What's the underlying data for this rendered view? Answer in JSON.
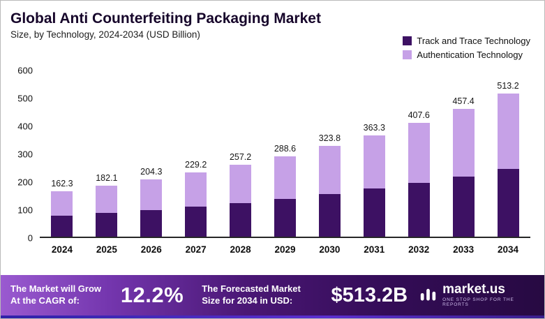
{
  "header": {
    "title": "Global Anti Counterfeiting Packaging Market",
    "subtitle": "Size, by Technology, 2024-2034 (USD Billion)"
  },
  "legend": {
    "items": [
      {
        "label": "Track and Trace Technology",
        "color": "#3d1163"
      },
      {
        "label": "Authentication Technology",
        "color": "#c6a1e7"
      }
    ]
  },
  "chart_data": {
    "type": "bar",
    "stacked": true,
    "title": "Global Anti Counterfeiting Packaging Market",
    "subtitle": "Size, by Technology, 2024-2034 (USD Billion)",
    "xlabel": "",
    "ylabel": "USD Billion",
    "ylim": [
      0,
      600
    ],
    "yticks": [
      0,
      100,
      200,
      300,
      400,
      500,
      600
    ],
    "grid": false,
    "legend_position": "top-right",
    "categories": [
      "2024",
      "2025",
      "2026",
      "2027",
      "2028",
      "2029",
      "2030",
      "2031",
      "2032",
      "2033",
      "2034"
    ],
    "series": [
      {
        "name": "Track and Trace Technology",
        "color": "#3d1163",
        "values": [
          75,
          85,
          95,
          107,
          120,
          135,
          152,
          172,
          193,
          215,
          242
        ]
      },
      {
        "name": "Authentication Technology",
        "color": "#c6a1e7",
        "values": [
          87.3,
          97.1,
          109.3,
          122.2,
          137.2,
          153.6,
          171.8,
          191.3,
          214.6,
          242.4,
          271.2
        ]
      }
    ],
    "totals": [
      162.3,
      182.1,
      204.3,
      229.2,
      257.2,
      288.6,
      323.8,
      363.3,
      407.6,
      457.4,
      513.2
    ]
  },
  "banner": {
    "cagr_label": "The Market will Grow At the CAGR of:",
    "cagr_value": "12.2%",
    "forecast_label": "The Forecasted Market Size for 2034 in USD:",
    "forecast_value": "$513.2B",
    "brand": "market.us",
    "brand_tagline": "ONE STOP SHOP FOR THE REPORTS"
  }
}
